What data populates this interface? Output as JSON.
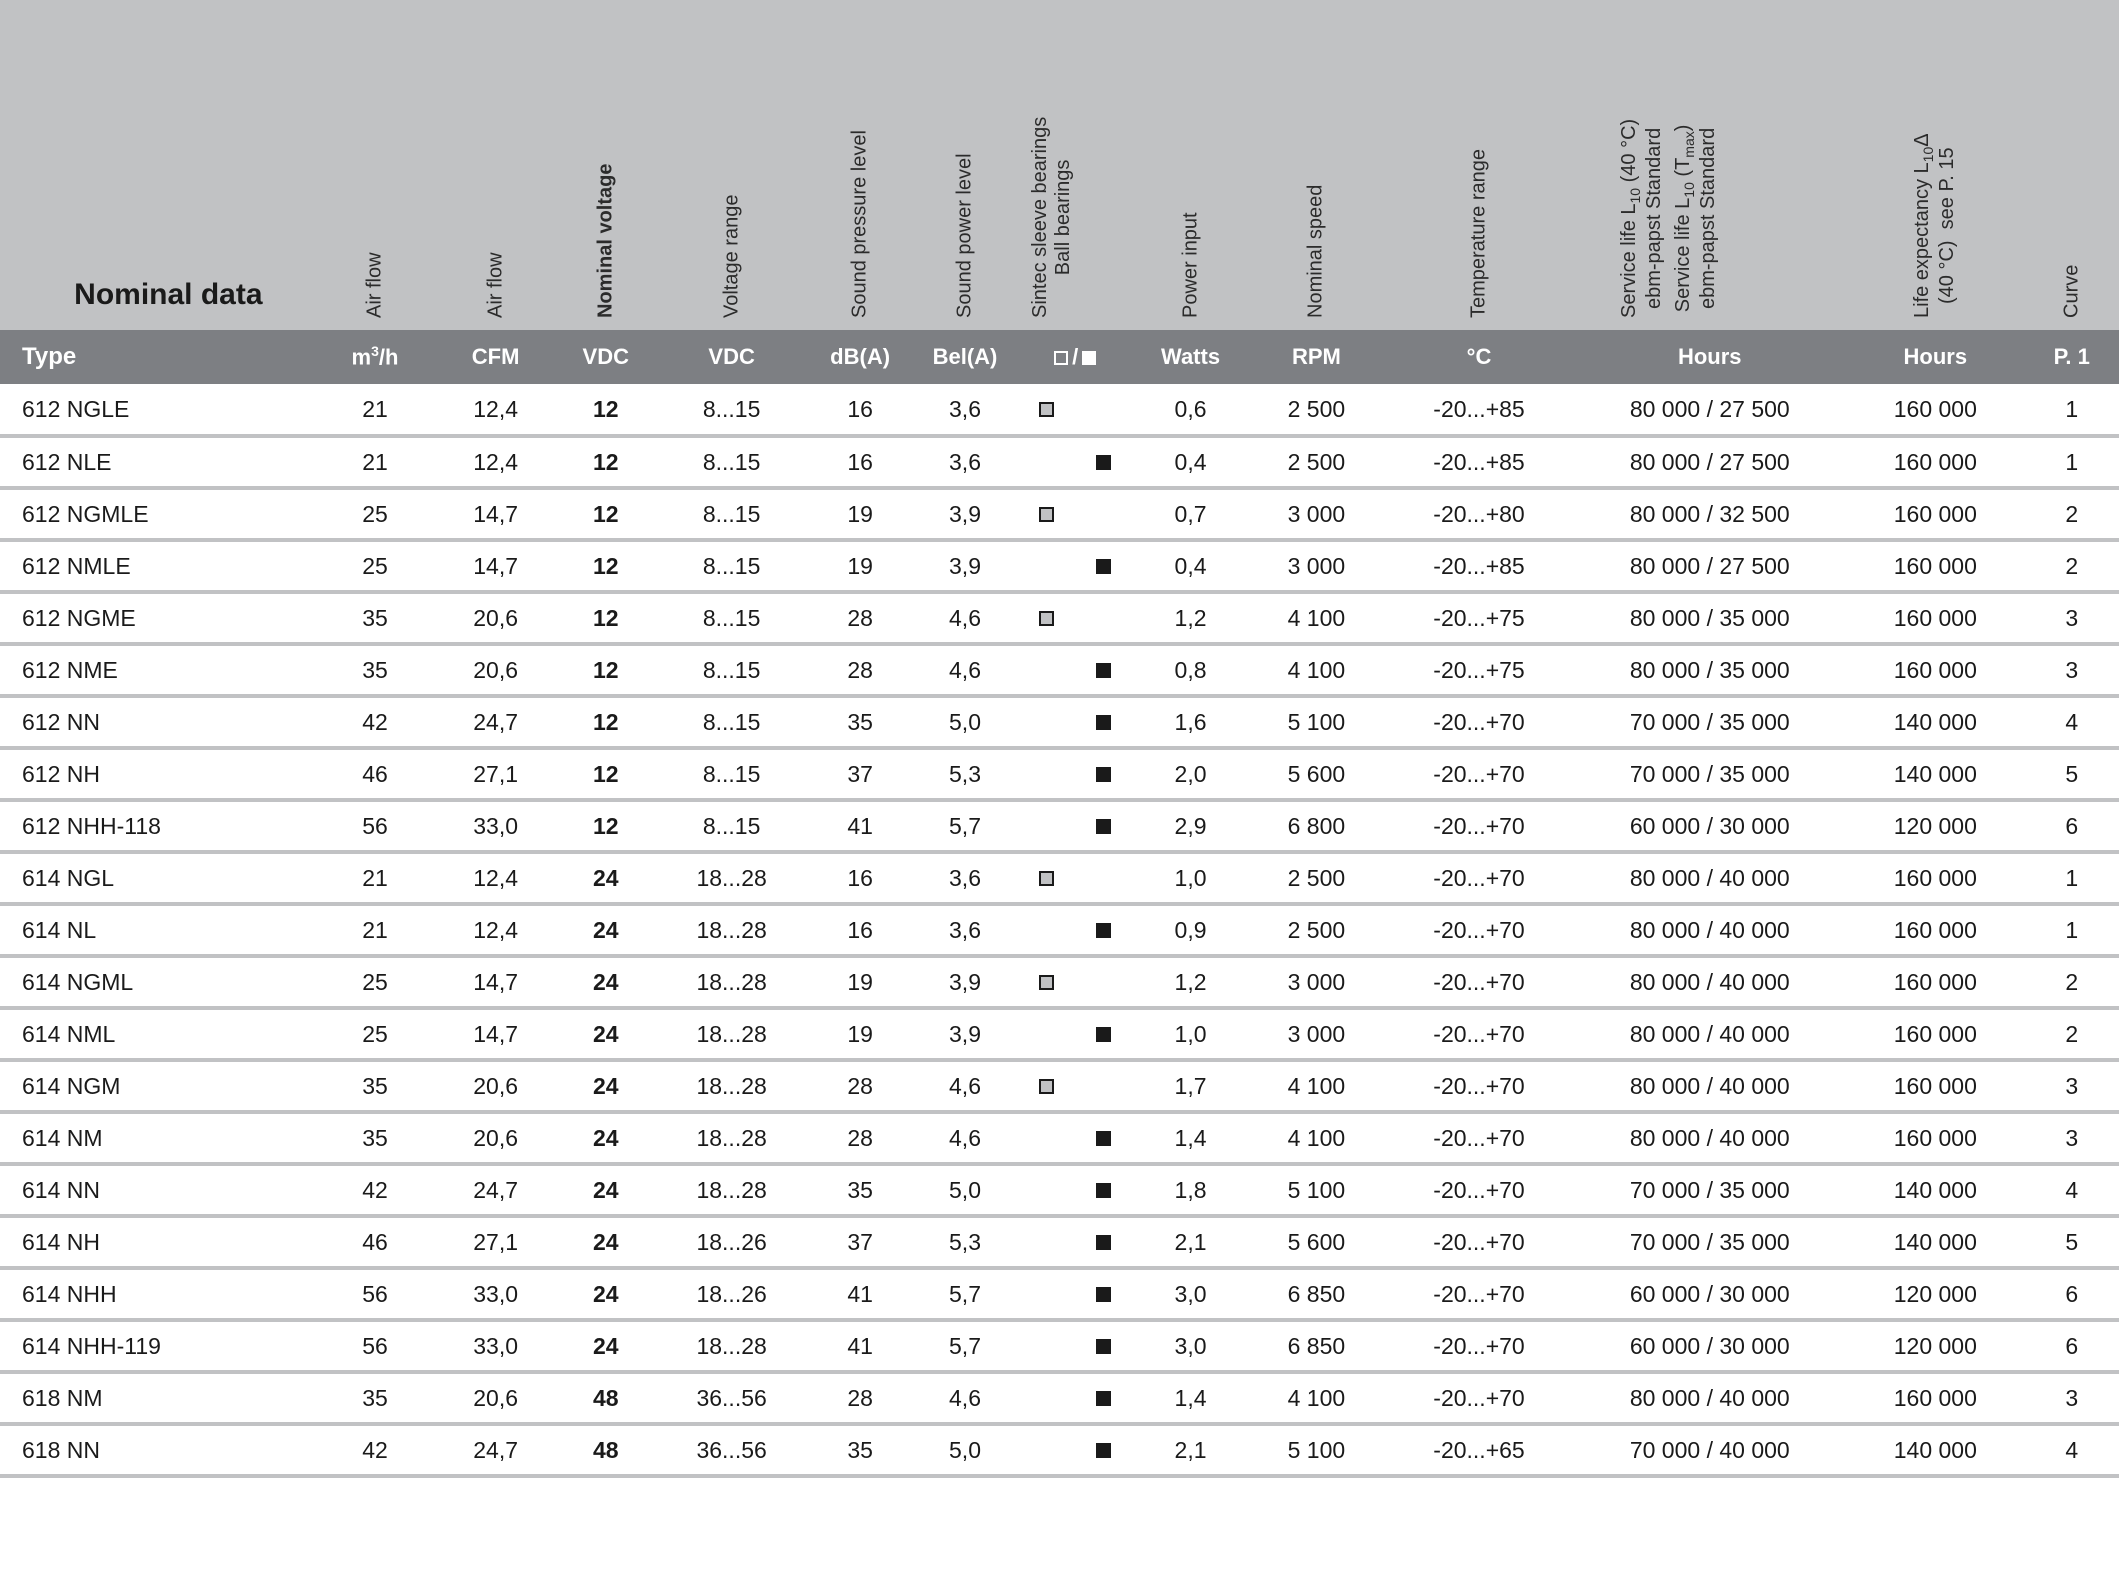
{
  "header": {
    "title": "Nominal data",
    "columns": [
      {
        "key": "type",
        "label": "",
        "unit": "Type"
      },
      {
        "key": "airflow_m3h",
        "label": "Air flow",
        "unit_html": "m<sup>3</sup>/h"
      },
      {
        "key": "airflow_cfm",
        "label": "Air flow",
        "unit": "CFM"
      },
      {
        "key": "nominal_v",
        "label": "Nominal voltage",
        "unit": "VDC",
        "bold": true
      },
      {
        "key": "v_range",
        "label": "Voltage range",
        "unit": "VDC"
      },
      {
        "key": "spl",
        "label": "Sound pressure level",
        "unit": "dB(A)"
      },
      {
        "key": "swl",
        "label": "Sound power level",
        "unit": "Bel(A)"
      },
      {
        "key": "bearing",
        "label": "Sintec sleeve bearings\nBall bearings",
        "unit_symbols": true
      },
      {
        "key": "power_in",
        "label": "Power input",
        "unit": "Watts"
      },
      {
        "key": "rpm",
        "label": "Nominal speed",
        "unit": "RPM"
      },
      {
        "key": "temp",
        "label": "Temperature range",
        "unit": "°C"
      },
      {
        "key": "hours",
        "label_multi": [
          "Service life L10 (40 °C) ebm-papst Standard",
          "Service life L10 (Tmax) ebm-papst Standard"
        ],
        "unit": "Hours"
      },
      {
        "key": "life_exp",
        "label": "Life expectancy L10Δ (40 °C)  see P. 15",
        "unit": "Hours"
      },
      {
        "key": "curve",
        "label": "Curve",
        "unit": "P. 1"
      }
    ]
  },
  "colors": {
    "header_bg": "#c1c2c4",
    "unit_row_bg": "#7d7f83",
    "unit_row_text": "#ffffff",
    "row_divider": "#c1c2c4",
    "text": "#1a1a1a",
    "sintec_fill": "#c1c2c4",
    "ball_fill": "#1a1a1a"
  },
  "groups": [
    {
      "rows": [
        {
          "type": "612 NGLE",
          "m3h": "21",
          "cfm": "12,4",
          "vdc": "12",
          "vr": "8...15",
          "db": "16",
          "bel": "3,6",
          "bear": "sintec",
          "w": "0,6",
          "rpm": "2 500",
          "temp": "-20...+85",
          "hours": "80 000 / 27 500",
          "life": "160 000",
          "curve": "1"
        },
        {
          "type": "612 NLE",
          "m3h": "21",
          "cfm": "12,4",
          "vdc": "12",
          "vr": "8...15",
          "db": "16",
          "bel": "3,6",
          "bear": "ball",
          "w": "0,4",
          "rpm": "2 500",
          "temp": "-20...+85",
          "hours": "80 000 / 27 500",
          "life": "160 000",
          "curve": "1"
        },
        {
          "type": "612 NGMLE",
          "m3h": "25",
          "cfm": "14,7",
          "vdc": "12",
          "vr": "8...15",
          "db": "19",
          "bel": "3,9",
          "bear": "sintec",
          "w": "0,7",
          "rpm": "3 000",
          "temp": "-20...+80",
          "hours": "80 000 / 32 500",
          "life": "160 000",
          "curve": "2"
        },
        {
          "type": "612 NMLE",
          "m3h": "25",
          "cfm": "14,7",
          "vdc": "12",
          "vr": "8...15",
          "db": "19",
          "bel": "3,9",
          "bear": "ball",
          "w": "0,4",
          "rpm": "3 000",
          "temp": "-20...+85",
          "hours": "80 000 / 27 500",
          "life": "160 000",
          "curve": "2"
        },
        {
          "type": "612 NGME",
          "m3h": "35",
          "cfm": "20,6",
          "vdc": "12",
          "vr": "8...15",
          "db": "28",
          "bel": "4,6",
          "bear": "sintec",
          "w": "1,2",
          "rpm": "4 100",
          "temp": "-20...+75",
          "hours": "80 000 / 35 000",
          "life": "160 000",
          "curve": "3"
        },
        {
          "type": "612 NME",
          "m3h": "35",
          "cfm": "20,6",
          "vdc": "12",
          "vr": "8...15",
          "db": "28",
          "bel": "4,6",
          "bear": "ball",
          "w": "0,8",
          "rpm": "4 100",
          "temp": "-20...+75",
          "hours": "80 000 / 35 000",
          "life": "160 000",
          "curve": "3"
        },
        {
          "type": "612 NN",
          "m3h": "42",
          "cfm": "24,7",
          "vdc": "12",
          "vr": "8...15",
          "db": "35",
          "bel": "5,0",
          "bear": "ball",
          "w": "1,6",
          "rpm": "5 100",
          "temp": "-20...+70",
          "hours": "70 000 / 35 000",
          "life": "140 000",
          "curve": "4"
        },
        {
          "type": "612 NH",
          "m3h": "46",
          "cfm": "27,1",
          "vdc": "12",
          "vr": "8...15",
          "db": "37",
          "bel": "5,3",
          "bear": "ball",
          "w": "2,0",
          "rpm": "5 600",
          "temp": "-20...+70",
          "hours": "70 000 / 35 000",
          "life": "140 000",
          "curve": "5"
        },
        {
          "type": "612 NHH-118",
          "m3h": "56",
          "cfm": "33,0",
          "vdc": "12",
          "vr": "8...15",
          "db": "41",
          "bel": "5,7",
          "bear": "ball",
          "w": "2,9",
          "rpm": "6 800",
          "temp": "-20...+70",
          "hours": "60 000 / 30 000",
          "life": "120 000",
          "curve": "6"
        }
      ]
    },
    {
      "rows": [
        {
          "type": "614 NGL",
          "m3h": "21",
          "cfm": "12,4",
          "vdc": "24",
          "vr": "18...28",
          "db": "16",
          "bel": "3,6",
          "bear": "sintec",
          "w": "1,0",
          "rpm": "2 500",
          "temp": "-20...+70",
          "hours": "80 000 / 40 000",
          "life": "160 000",
          "curve": "1"
        },
        {
          "type": "614 NL",
          "m3h": "21",
          "cfm": "12,4",
          "vdc": "24",
          "vr": "18...28",
          "db": "16",
          "bel": "3,6",
          "bear": "ball",
          "w": "0,9",
          "rpm": "2 500",
          "temp": "-20...+70",
          "hours": "80 000 / 40 000",
          "life": "160 000",
          "curve": "1"
        },
        {
          "type": "614 NGML",
          "m3h": "25",
          "cfm": "14,7",
          "vdc": "24",
          "vr": "18...28",
          "db": "19",
          "bel": "3,9",
          "bear": "sintec",
          "w": "1,2",
          "rpm": "3 000",
          "temp": "-20...+70",
          "hours": "80 000 / 40 000",
          "life": "160 000",
          "curve": "2"
        },
        {
          "type": "614 NML",
          "m3h": "25",
          "cfm": "14,7",
          "vdc": "24",
          "vr": "18...28",
          "db": "19",
          "bel": "3,9",
          "bear": "ball",
          "w": "1,0",
          "rpm": "3 000",
          "temp": "-20...+70",
          "hours": "80 000 / 40 000",
          "life": "160 000",
          "curve": "2"
        },
        {
          "type": "614 NGM",
          "m3h": "35",
          "cfm": "20,6",
          "vdc": "24",
          "vr": "18...28",
          "db": "28",
          "bel": "4,6",
          "bear": "sintec",
          "w": "1,7",
          "rpm": "4 100",
          "temp": "-20...+70",
          "hours": "80 000 / 40 000",
          "life": "160 000",
          "curve": "3"
        },
        {
          "type": "614 NM",
          "m3h": "35",
          "cfm": "20,6",
          "vdc": "24",
          "vr": "18...28",
          "db": "28",
          "bel": "4,6",
          "bear": "ball",
          "w": "1,4",
          "rpm": "4 100",
          "temp": "-20...+70",
          "hours": "80 000 / 40 000",
          "life": "160 000",
          "curve": "3"
        },
        {
          "type": "614 NN",
          "m3h": "42",
          "cfm": "24,7",
          "vdc": "24",
          "vr": "18...28",
          "db": "35",
          "bel": "5,0",
          "bear": "ball",
          "w": "1,8",
          "rpm": "5 100",
          "temp": "-20...+70",
          "hours": "70 000 / 35 000",
          "life": "140 000",
          "curve": "4"
        },
        {
          "type": "614 NH",
          "m3h": "46",
          "cfm": "27,1",
          "vdc": "24",
          "vr": "18...26",
          "db": "37",
          "bel": "5,3",
          "bear": "ball",
          "w": "2,1",
          "rpm": "5 600",
          "temp": "-20...+70",
          "hours": "70 000 / 35 000",
          "life": "140 000",
          "curve": "5"
        },
        {
          "type": "614 NHH",
          "m3h": "56",
          "cfm": "33,0",
          "vdc": "24",
          "vr": "18...26",
          "db": "41",
          "bel": "5,7",
          "bear": "ball",
          "w": "3,0",
          "rpm": "6 850",
          "temp": "-20...+70",
          "hours": "60 000 / 30 000",
          "life": "120 000",
          "curve": "6"
        },
        {
          "type": "614 NHH-119",
          "m3h": "56",
          "cfm": "33,0",
          "vdc": "24",
          "vr": "18...28",
          "db": "41",
          "bel": "5,7",
          "bear": "ball",
          "w": "3,0",
          "rpm": "6 850",
          "temp": "-20...+70",
          "hours": "60 000 / 30 000",
          "life": "120 000",
          "curve": "6"
        }
      ]
    },
    {
      "rows": [
        {
          "type": "618 NM",
          "m3h": "35",
          "cfm": "20,6",
          "vdc": "48",
          "vr": "36...56",
          "db": "28",
          "bel": "4,6",
          "bear": "ball",
          "w": "1,4",
          "rpm": "4 100",
          "temp": "-20...+70",
          "hours": "80 000 / 40 000",
          "life": "160 000",
          "curve": "3"
        },
        {
          "type": "618 NN",
          "m3h": "42",
          "cfm": "24,7",
          "vdc": "48",
          "vr": "36...56",
          "db": "35",
          "bel": "5,0",
          "bear": "ball",
          "w": "2,1",
          "rpm": "5 100",
          "temp": "-20...+65",
          "hours": "70 000 / 40 000",
          "life": "140 000",
          "curve": "4"
        }
      ]
    }
  ]
}
